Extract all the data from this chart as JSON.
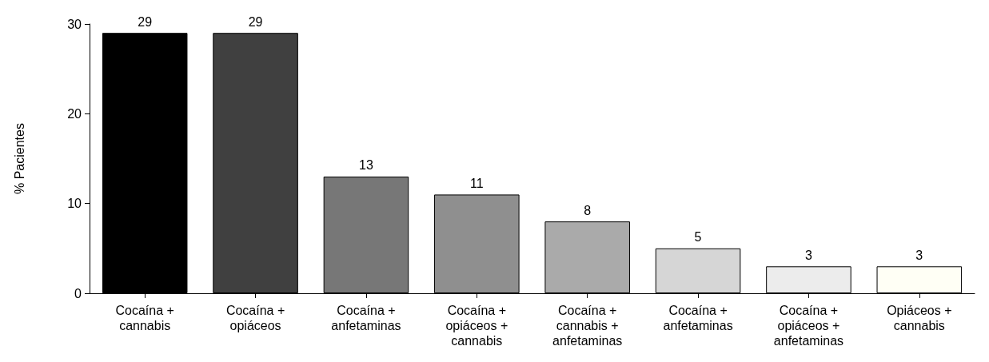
{
  "chart_data": {
    "type": "bar",
    "ylabel": "% Pacientes",
    "categories": [
      "Cocaína +\ncannabis",
      "Cocaína +\nopiáceos",
      "Cocaína +\nanfetaminas",
      "Cocaína +\nopiáceos +\ncannabis",
      "Cocaína +\ncannabis +\nanfetaminas",
      "Cocaína +\nanfetaminas",
      "Cocaína +\nopiáceos +\nanfetaminas",
      "Opiáceos +\ncannabis"
    ],
    "values": [
      29,
      29,
      13,
      11,
      8,
      5,
      3,
      3
    ],
    "colors": [
      "#000000",
      "#404040",
      "#777777",
      "#8f8f8f",
      "#aaaaaa",
      "#d6d6d6",
      "#ececec",
      "#fffff5"
    ],
    "ylim": [
      0,
      30
    ],
    "yticks": [
      0,
      10,
      20,
      30
    ],
    "data_labels": true,
    "grid": false
  }
}
